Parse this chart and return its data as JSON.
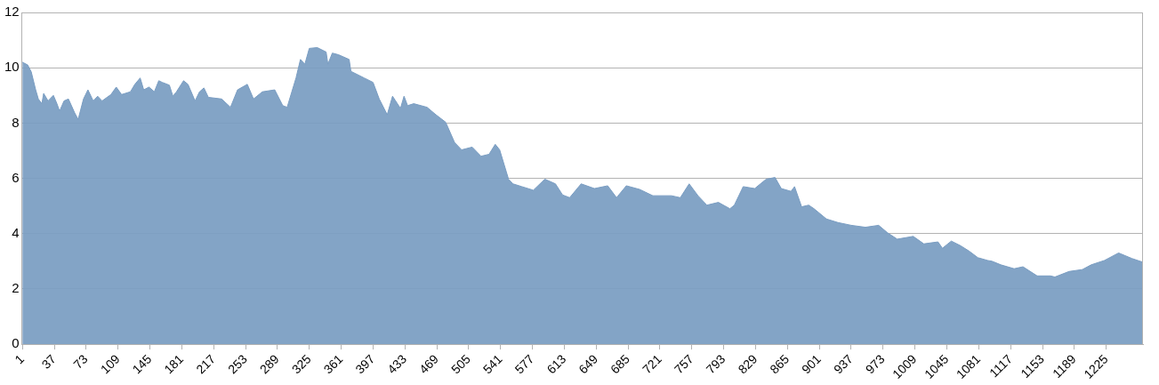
{
  "chart_data": {
    "type": "area",
    "xlim": [
      0.5,
      1266.5
    ],
    "xticks": [
      1,
      37,
      73,
      109,
      145,
      181,
      217,
      253,
      289,
      325,
      361,
      397,
      433,
      469,
      505,
      541,
      577,
      613,
      649,
      685,
      721,
      757,
      793,
      829,
      865,
      901,
      937,
      973,
      1009,
      1045,
      1081,
      1117,
      1153,
      1189,
      1225
    ],
    "ylim": [
      0,
      12
    ],
    "yticks": [
      0,
      2,
      4,
      6,
      8,
      10,
      12
    ],
    "grid": "y",
    "legend": false,
    "series": [
      {
        "color": "#7a9dc2",
        "x": [
          1,
          7,
          11,
          16,
          19,
          23,
          25,
          30,
          36,
          40,
          43,
          48,
          53,
          60,
          64,
          70,
          75,
          81,
          86,
          91,
          101,
          107,
          113,
          123,
          128,
          134,
          138,
          144,
          150,
          155,
          159,
          167,
          171,
          175,
          183,
          188,
          196,
          201,
          206,
          211,
          226,
          236,
          244,
          255,
          262,
          272,
          286,
          295,
          300,
          310,
          315,
          320,
          325,
          334,
          344,
          346,
          351,
          358,
          370,
          372,
          387,
          397,
          404,
          413,
          419,
          428,
          432,
          436,
          443,
          458,
          468,
          479,
          489,
          497,
          509,
          519,
          528,
          535,
          540,
          550,
          555,
          565,
          578,
          591,
          603,
          611,
          619,
          632,
          647,
          662,
          672,
          683,
          698,
          713,
          734,
          744,
          754,
          764,
          774,
          787,
          800,
          805,
          815,
          828,
          841,
          851,
          858,
          869,
          873,
          881,
          889,
          895,
          909,
          922,
          937,
          953,
          968,
          978,
          989,
          1007,
          1019,
          1035,
          1040,
          1050,
          1060,
          1070,
          1080,
          1091,
          1096,
          1106,
          1121,
          1131,
          1147,
          1162,
          1167,
          1183,
          1198,
          1208,
          1223,
          1239,
          1254,
          1266
        ],
        "values": [
          10.2,
          10.1,
          9.85,
          9.2,
          8.87,
          8.7,
          9.07,
          8.8,
          9.0,
          8.7,
          8.43,
          8.8,
          8.87,
          8.37,
          8.13,
          8.87,
          9.2,
          8.8,
          8.97,
          8.8,
          9.03,
          9.3,
          9.03,
          9.13,
          9.4,
          9.63,
          9.2,
          9.3,
          9.13,
          9.53,
          9.47,
          9.37,
          8.97,
          9.13,
          9.53,
          9.4,
          8.8,
          9.13,
          9.27,
          8.93,
          8.87,
          8.57,
          9.2,
          9.4,
          8.87,
          9.13,
          9.2,
          8.63,
          8.57,
          9.63,
          10.3,
          10.13,
          10.7,
          10.73,
          10.57,
          10.13,
          10.53,
          10.47,
          10.3,
          9.87,
          9.63,
          9.47,
          8.87,
          8.3,
          8.97,
          8.53,
          8.97,
          8.63,
          8.7,
          8.57,
          8.3,
          8.03,
          7.3,
          7.03,
          7.13,
          6.8,
          6.87,
          7.23,
          7.03,
          5.97,
          5.8,
          5.7,
          5.57,
          5.97,
          5.8,
          5.4,
          5.3,
          5.8,
          5.63,
          5.73,
          5.3,
          5.73,
          5.6,
          5.37,
          5.37,
          5.3,
          5.8,
          5.37,
          5.03,
          5.13,
          4.9,
          5.03,
          5.7,
          5.63,
          5.97,
          6.03,
          5.63,
          5.53,
          5.7,
          4.97,
          5.03,
          4.9,
          4.53,
          4.4,
          4.3,
          4.23,
          4.3,
          4.03,
          3.8,
          3.9,
          3.63,
          3.7,
          3.47,
          3.73,
          3.57,
          3.37,
          3.13,
          3.03,
          3.0,
          2.87,
          2.73,
          2.8,
          2.47,
          2.47,
          2.43,
          2.63,
          2.7,
          2.87,
          3.03,
          3.3,
          3.1,
          2.97
        ]
      }
    ]
  }
}
